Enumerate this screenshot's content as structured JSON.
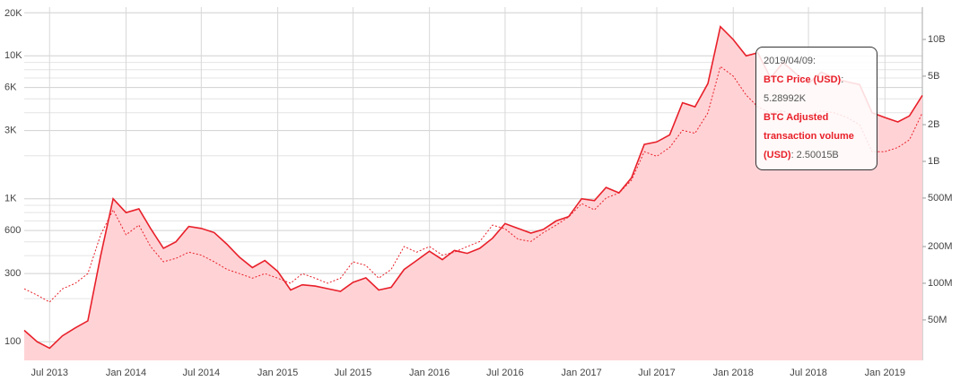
{
  "chart_data": {
    "type": "area-line",
    "x": [
      "2013-05",
      "2013-06",
      "2013-07",
      "2013-08",
      "2013-09",
      "2013-10",
      "2013-11",
      "2013-12",
      "2014-01",
      "2014-02",
      "2014-03",
      "2014-04",
      "2014-05",
      "2014-06",
      "2014-07",
      "2014-08",
      "2014-09",
      "2014-10",
      "2014-11",
      "2014-12",
      "2015-01",
      "2015-02",
      "2015-03",
      "2015-04",
      "2015-05",
      "2015-06",
      "2015-07",
      "2015-08",
      "2015-09",
      "2015-10",
      "2015-11",
      "2015-12",
      "2016-01",
      "2016-02",
      "2016-03",
      "2016-04",
      "2016-05",
      "2016-06",
      "2016-07",
      "2016-08",
      "2016-09",
      "2016-10",
      "2016-11",
      "2016-12",
      "2017-01",
      "2017-02",
      "2017-03",
      "2017-04",
      "2017-05",
      "2017-06",
      "2017-07",
      "2017-08",
      "2017-09",
      "2017-10",
      "2017-11",
      "2017-12",
      "2018-01",
      "2018-02",
      "2018-03",
      "2018-04",
      "2018-05",
      "2018-06",
      "2018-07",
      "2018-08",
      "2018-09",
      "2018-10",
      "2018-11",
      "2018-12",
      "2019-01",
      "2019-02",
      "2019-03",
      "2019-04"
    ],
    "series": [
      {
        "name": "BTC Price (USD)",
        "color": "#e8202a",
        "fill": "#ffd3d6",
        "axis": "y",
        "values": [
          120,
          100,
          90,
          110,
          125,
          140,
          400,
          1000,
          800,
          850,
          620,
          450,
          500,
          640,
          620,
          580,
          480,
          390,
          330,
          370,
          310,
          230,
          250,
          245,
          235,
          225,
          260,
          280,
          230,
          240,
          320,
          370,
          430,
          375,
          435,
          415,
          450,
          530,
          670,
          620,
          575,
          610,
          700,
          750,
          1000,
          970,
          1200,
          1100,
          1400,
          2400,
          2500,
          2800,
          4700,
          4400,
          6400,
          16000,
          13000,
          10000,
          10500,
          7000,
          9000,
          7500,
          6400,
          7700,
          7000,
          6600,
          6300,
          4000,
          3700,
          3450,
          3800,
          5290
        ]
      },
      {
        "name": "BTC Adjusted transaction volume (USD)",
        "color": "#e8202a",
        "axis": "y2",
        "dashed": true,
        "values": [
          90000000,
          80000000,
          70000000,
          90000000,
          100000000,
          120000000,
          250000000,
          400000000,
          250000000,
          300000000,
          200000000,
          150000000,
          160000000,
          180000000,
          170000000,
          150000000,
          130000000,
          120000000,
          110000000,
          120000000,
          110000000,
          100000000,
          120000000,
          110000000,
          100000000,
          110000000,
          150000000,
          140000000,
          110000000,
          130000000,
          200000000,
          180000000,
          200000000,
          170000000,
          180000000,
          200000000,
          220000000,
          300000000,
          280000000,
          230000000,
          220000000,
          260000000,
          300000000,
          350000000,
          450000000,
          400000000,
          500000000,
          550000000,
          700000000,
          1200000000,
          1100000000,
          1300000000,
          1800000000,
          1700000000,
          2500000000,
          6000000000,
          5000000000,
          3500000000,
          2800000000,
          2500000000,
          2600000000,
          2200000000,
          2400000000,
          2600000000,
          2500000000,
          2300000000,
          2000000000,
          1200000000,
          1200000000,
          1300000000,
          1500000000,
          2500000000
        ]
      }
    ],
    "log_scale": true,
    "grid": true,
    "xlim": [
      "2013-05",
      "2019-04"
    ],
    "xticks": [
      {
        "value": "2013-07",
        "label": "Jul 2013"
      },
      {
        "value": "2014-01",
        "label": "Jan 2014"
      },
      {
        "value": "2014-07",
        "label": "Jul 2014"
      },
      {
        "value": "2015-01",
        "label": "Jan 2015"
      },
      {
        "value": "2015-07",
        "label": "Jul 2015"
      },
      {
        "value": "2016-01",
        "label": "Jan 2016"
      },
      {
        "value": "2016-07",
        "label": "Jul 2016"
      },
      {
        "value": "2017-01",
        "label": "Jan 2017"
      },
      {
        "value": "2017-07",
        "label": "Jul 2017"
      },
      {
        "value": "2018-01",
        "label": "Jan 2018"
      },
      {
        "value": "2018-07",
        "label": "Jul 2018"
      },
      {
        "value": "2019-01",
        "label": "Jan 2019"
      }
    ],
    "ylim": [
      74,
      21900
    ],
    "yticks": [
      100,
      300,
      600,
      {
        "value": 1000,
        "label": "1K"
      },
      {
        "value": 3000,
        "label": "3K"
      },
      {
        "value": 6000,
        "label": "6K"
      },
      {
        "value": 10000,
        "label": "10K"
      },
      {
        "value": 20000,
        "label": "20K"
      }
    ],
    "y_minor_ticks": [
      200,
      400,
      500,
      700,
      800,
      900,
      2000,
      4000,
      5000,
      7000,
      8000,
      9000
    ],
    "y2lim": [
      23300000,
      18400000000
    ],
    "y2ticks": [
      {
        "value": 50000000,
        "label": "50M"
      },
      {
        "value": 100000000,
        "label": "100M"
      },
      {
        "value": 200000000,
        "label": "200M"
      },
      {
        "value": 500000000,
        "label": "500M"
      },
      {
        "value": 1000000000,
        "label": "1B"
      },
      {
        "value": 2000000000,
        "label": "2B"
      },
      {
        "value": 5000000000,
        "label": "5B"
      },
      {
        "value": 10000000000,
        "label": "10B"
      }
    ],
    "tooltip": {
      "date": "2019/04/09:",
      "items": [
        {
          "name": "BTC Price (USD)",
          "text": ": 5.28992K"
        },
        {
          "name": "BTC Adjusted transaction volume (USD)",
          "text": ": 2.50015B"
        }
      ]
    }
  }
}
